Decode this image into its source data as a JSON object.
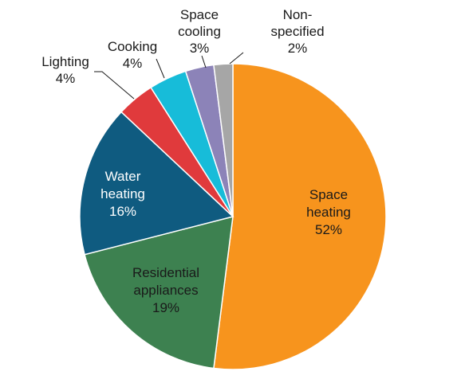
{
  "chart_data": {
    "type": "pie",
    "categories": [
      "Space heating",
      "Residential appliances",
      "Water heating",
      "Lighting",
      "Cooking",
      "Space cooling",
      "Non-specified"
    ],
    "values": [
      52,
      19,
      16,
      4,
      4,
      3,
      2
    ],
    "value_labels": [
      "52%",
      "19%",
      "16%",
      "4%",
      "4%",
      "3%",
      "2%"
    ],
    "label_lines": [
      [
        "Space",
        "heating",
        "52%"
      ],
      [
        "Residential",
        "appliances",
        "19%"
      ],
      [
        "Water",
        "heating",
        "16%"
      ],
      [
        "Lighting",
        "4%"
      ],
      [
        "Cooking",
        "4%"
      ],
      [
        "Space",
        "cooling",
        "3%"
      ],
      [
        "Non-",
        "specified",
        "2%"
      ]
    ],
    "colors": [
      "#f7941d",
      "#3d8150",
      "#0f5b80",
      "#e03a3c",
      "#17bcd9",
      "#8c83b8",
      "#a6a6a6"
    ],
    "start": "12 o'clock",
    "direction": "clockwise",
    "title": "",
    "legend": "none (labels on slices)"
  }
}
